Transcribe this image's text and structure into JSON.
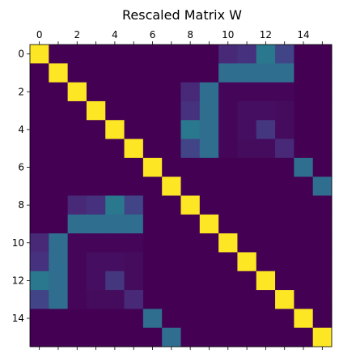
{
  "chart_data": {
    "type": "heatmap",
    "title": "Rescaled Matrix W",
    "rows": 16,
    "cols": 16,
    "x_ticks": [
      0,
      2,
      4,
      6,
      8,
      10,
      12,
      14
    ],
    "y_ticks": [
      0,
      2,
      4,
      6,
      8,
      10,
      12,
      14
    ],
    "x_tick_position": "top",
    "colormap": "viridis",
    "value_range": [
      0,
      1
    ],
    "values": [
      [
        1.0,
        0.0,
        0.0,
        0.0,
        0.0,
        0.0,
        0.0,
        0.0,
        0.0,
        0.0,
        0.15,
        0.18,
        0.5,
        0.25,
        0.0,
        0.0
      ],
      [
        0.0,
        1.0,
        0.0,
        0.0,
        0.0,
        0.0,
        0.0,
        0.0,
        0.0,
        0.0,
        0.45,
        0.45,
        0.45,
        0.45,
        0.0,
        0.0
      ],
      [
        0.0,
        0.0,
        1.0,
        0.0,
        0.0,
        0.0,
        0.0,
        0.0,
        0.15,
        0.45,
        0.02,
        0.02,
        0.02,
        0.02,
        0.0,
        0.0
      ],
      [
        0.0,
        0.0,
        0.0,
        1.0,
        0.0,
        0.0,
        0.0,
        0.0,
        0.18,
        0.45,
        0.02,
        0.05,
        0.05,
        0.04,
        0.0,
        0.0
      ],
      [
        0.0,
        0.0,
        0.0,
        0.0,
        1.0,
        0.0,
        0.0,
        0.0,
        0.5,
        0.45,
        0.02,
        0.05,
        0.2,
        0.04,
        0.0,
        0.0
      ],
      [
        0.0,
        0.0,
        0.0,
        0.0,
        0.0,
        1.0,
        0.0,
        0.0,
        0.25,
        0.45,
        0.02,
        0.04,
        0.04,
        0.15,
        0.0,
        0.0
      ],
      [
        0.0,
        0.0,
        0.0,
        0.0,
        0.0,
        0.0,
        1.0,
        0.0,
        0.0,
        0.0,
        0.0,
        0.0,
        0.0,
        0.0,
        0.45,
        0.0
      ],
      [
        0.0,
        0.0,
        0.0,
        0.0,
        0.0,
        0.0,
        0.0,
        1.0,
        0.0,
        0.0,
        0.0,
        0.0,
        0.0,
        0.0,
        0.0,
        0.45
      ],
      [
        0.0,
        0.0,
        0.15,
        0.18,
        0.5,
        0.25,
        0.0,
        0.0,
        1.0,
        0.0,
        0.0,
        0.0,
        0.0,
        0.0,
        0.0,
        0.0
      ],
      [
        0.0,
        0.0,
        0.45,
        0.45,
        0.45,
        0.45,
        0.0,
        0.0,
        0.0,
        1.0,
        0.0,
        0.0,
        0.0,
        0.0,
        0.0,
        0.0
      ],
      [
        0.15,
        0.45,
        0.02,
        0.02,
        0.02,
        0.02,
        0.0,
        0.0,
        0.0,
        0.0,
        1.0,
        0.0,
        0.0,
        0.0,
        0.0,
        0.0
      ],
      [
        0.18,
        0.45,
        0.02,
        0.05,
        0.05,
        0.04,
        0.0,
        0.0,
        0.0,
        0.0,
        0.0,
        1.0,
        0.0,
        0.0,
        0.0,
        0.0
      ],
      [
        0.5,
        0.45,
        0.02,
        0.05,
        0.2,
        0.04,
        0.0,
        0.0,
        0.0,
        0.0,
        0.0,
        0.0,
        1.0,
        0.0,
        0.0,
        0.0
      ],
      [
        0.25,
        0.45,
        0.02,
        0.04,
        0.04,
        0.15,
        0.0,
        0.0,
        0.0,
        0.0,
        0.0,
        0.0,
        0.0,
        1.0,
        0.0,
        0.0
      ],
      [
        0.0,
        0.0,
        0.0,
        0.0,
        0.0,
        0.0,
        0.45,
        0.0,
        0.0,
        0.0,
        0.0,
        0.0,
        0.0,
        0.0,
        1.0,
        0.0
      ],
      [
        0.0,
        0.0,
        0.0,
        0.0,
        0.0,
        0.0,
        0.0,
        0.45,
        0.0,
        0.0,
        0.0,
        0.0,
        0.0,
        0.0,
        0.0,
        1.0
      ]
    ]
  }
}
